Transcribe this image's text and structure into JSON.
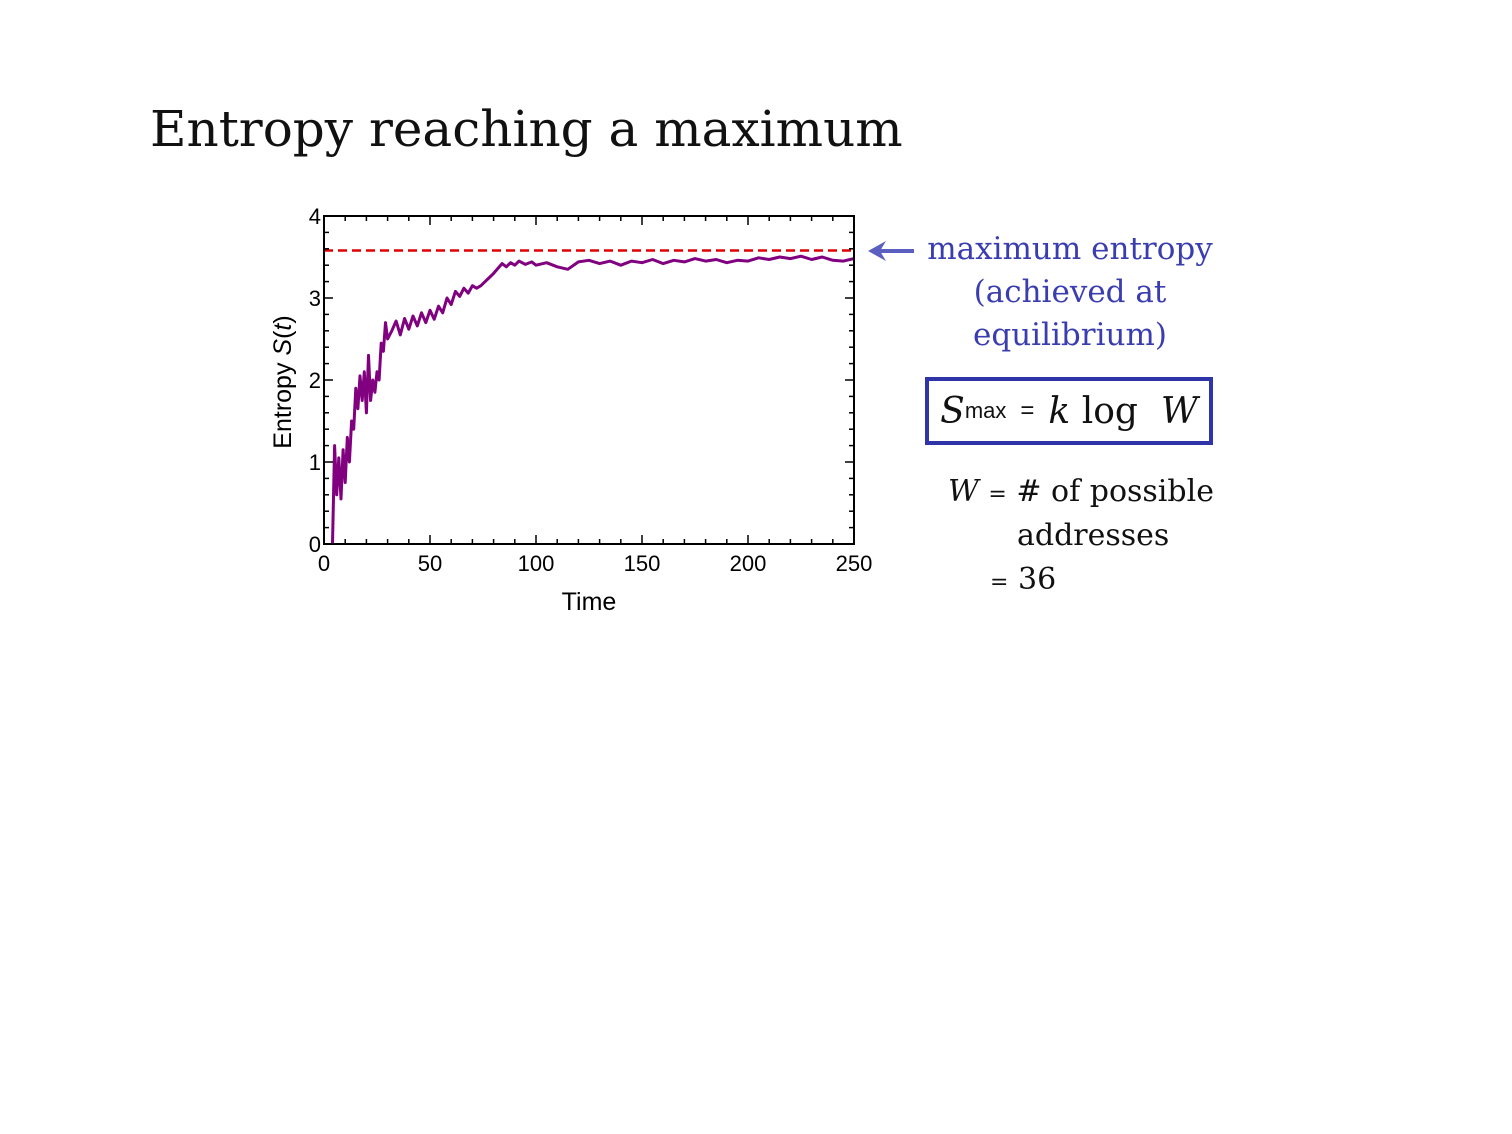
{
  "title": "Entropy reaching a maximum",
  "annotation": {
    "lines": [
      "maximum entropy",
      "(achieved at",
      "equilibrium)"
    ],
    "color": "#3a3db0"
  },
  "formula": {
    "S": "S",
    "sub": "max",
    "eq": "=",
    "k": "k",
    "log": "log",
    "W": "W"
  },
  "w_definition": {
    "W": "W",
    "eq1": "=",
    "line1": "# of possible",
    "line2": "addresses",
    "eq2": "=",
    "value": "36"
  },
  "chart_data": {
    "type": "line",
    "xlabel": "Time",
    "ylabel_prefix": "Entropy ",
    "ylabel_italic": "S",
    "ylabel_paren_open": "(",
    "ylabel_var": "t",
    "ylabel_paren_close": ")",
    "xlim": [
      0,
      250
    ],
    "ylim": [
      0,
      4
    ],
    "xticks": [
      0,
      50,
      100,
      150,
      200,
      250
    ],
    "yticks": [
      0,
      1,
      2,
      3,
      4
    ],
    "max_entropy": 3.58,
    "series": [
      {
        "color": "#800080",
        "x": [
          4,
          5,
          6,
          7,
          8,
          9,
          10,
          11,
          12,
          13,
          14,
          15,
          16,
          17,
          18,
          19,
          20,
          21,
          22,
          23,
          24,
          25,
          26,
          27,
          28,
          29,
          30,
          32,
          34,
          36,
          38,
          40,
          42,
          44,
          46,
          48,
          50,
          52,
          54,
          56,
          58,
          60,
          62,
          64,
          66,
          68,
          70,
          72,
          74,
          76,
          78,
          80,
          82,
          84,
          86,
          88,
          90,
          92,
          95,
          98,
          100,
          105,
          110,
          115,
          120,
          125,
          130,
          135,
          140,
          145,
          150,
          155,
          160,
          165,
          170,
          175,
          180,
          185,
          190,
          195,
          200,
          205,
          210,
          215,
          220,
          225,
          230,
          235,
          240,
          245,
          250
        ],
        "y": [
          0.0,
          1.2,
          0.6,
          1.05,
          0.55,
          1.15,
          0.75,
          1.3,
          1.0,
          1.5,
          1.4,
          1.9,
          1.65,
          2.05,
          1.75,
          2.1,
          1.6,
          2.3,
          1.75,
          2.0,
          1.85,
          2.1,
          2.0,
          2.45,
          2.35,
          2.7,
          2.5,
          2.6,
          2.72,
          2.55,
          2.75,
          2.62,
          2.78,
          2.66,
          2.82,
          2.7,
          2.85,
          2.74,
          2.9,
          2.82,
          3.0,
          2.92,
          3.08,
          3.02,
          3.12,
          3.06,
          3.15,
          3.12,
          3.15,
          3.2,
          3.25,
          3.3,
          3.36,
          3.42,
          3.38,
          3.43,
          3.4,
          3.45,
          3.41,
          3.44,
          3.4,
          3.43,
          3.38,
          3.35,
          3.44,
          3.46,
          3.42,
          3.45,
          3.4,
          3.45,
          3.43,
          3.47,
          3.42,
          3.46,
          3.44,
          3.48,
          3.45,
          3.47,
          3.43,
          3.46,
          3.45,
          3.49,
          3.47,
          3.5,
          3.48,
          3.51,
          3.47,
          3.5,
          3.46,
          3.45,
          3.48
        ]
      }
    ]
  }
}
